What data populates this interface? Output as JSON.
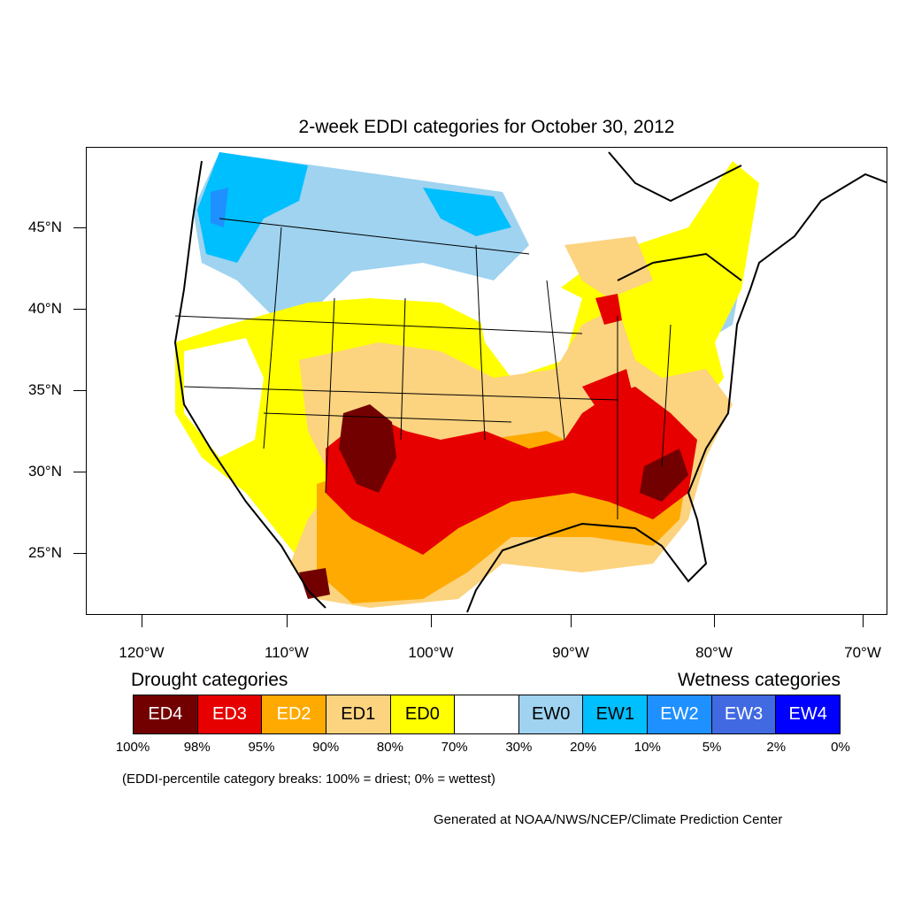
{
  "title": "2-week EDDI categories for October 30, 2012",
  "lat_labels": [
    "45°N",
    "40°N",
    "35°N",
    "30°N",
    "25°N"
  ],
  "lon_labels": [
    "120°W",
    "110°W",
    "100°W",
    "90°W",
    "80°W",
    "70°W"
  ],
  "legend": {
    "drought_heading": "Drought categories",
    "wetness_heading": "Wetness categories",
    "categories": [
      {
        "label": "ED4",
        "color": "#730000",
        "text_color": "#ffffff"
      },
      {
        "label": "ED3",
        "color": "#e60000",
        "text_color": "#ffffff"
      },
      {
        "label": "ED2",
        "color": "#ffaa00",
        "text_color": "#ffffff"
      },
      {
        "label": "ED1",
        "color": "#fcd37f",
        "text_color": "#000000"
      },
      {
        "label": "ED0",
        "color": "#ffff00",
        "text_color": "#000000"
      },
      {
        "label": "",
        "color": "#ffffff",
        "text_color": "#000000"
      },
      {
        "label": "EW0",
        "color": "#9fd3f0",
        "text_color": "#000000"
      },
      {
        "label": "EW1",
        "color": "#00bfff",
        "text_color": "#000000"
      },
      {
        "label": "EW2",
        "color": "#1e90ff",
        "text_color": "#ffffff"
      },
      {
        "label": "EW3",
        "color": "#4169e1",
        "text_color": "#ffffff"
      },
      {
        "label": "EW4",
        "color": "#0000ff",
        "text_color": "#ffffff"
      }
    ],
    "breaks": [
      "100%",
      "98%",
      "95%",
      "90%",
      "80%",
      "70%",
      "30%",
      "20%",
      "10%",
      "5%",
      "2%",
      "0%"
    ]
  },
  "note": "(EDDI-percentile category breaks: 100% = driest; 0% = wettest)",
  "credit": "Generated at NOAA/NWS/NCEP/Climate Prediction Center"
}
